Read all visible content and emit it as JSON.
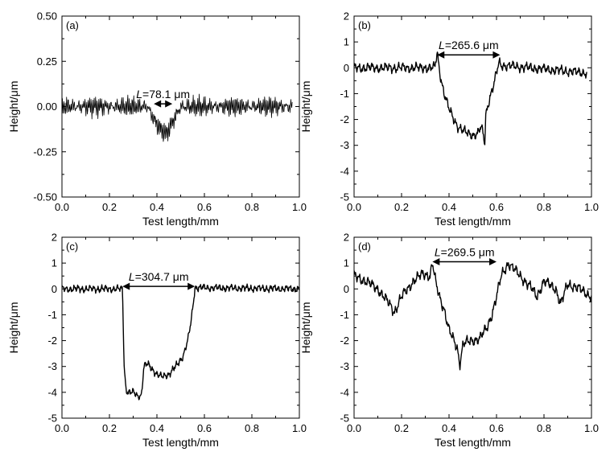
{
  "chart_data": [
    {
      "type": "line",
      "panel_label": "(a)",
      "xlabel": "Test length/mm",
      "ylabel": "Height/μm",
      "xlim": [
        0.0,
        1.0
      ],
      "ylim": [
        -0.5,
        0.5
      ],
      "xticks": [
        "0.0",
        "0.2",
        "0.4",
        "0.6",
        "0.8",
        "1.0"
      ],
      "yticks": [
        "-0.50",
        "-0.25",
        "0.00",
        "0.25",
        "0.50"
      ],
      "annotation": {
        "prefix": "L",
        "text": "=78.1 μm",
        "x_start": 0.387,
        "x_end": 0.465,
        "y": 0.015
      },
      "noise_amp": 0.055,
      "noise_freq": 1.0,
      "stroke_width": 0.8,
      "profile": {
        "x": [
          0.0,
          0.36,
          0.38,
          0.4,
          0.42,
          0.44,
          0.46,
          0.48,
          0.5,
          0.97
        ],
        "y": [
          0.0,
          0.0,
          -0.05,
          -0.1,
          -0.13,
          -0.15,
          -0.1,
          -0.05,
          0.0,
          0.0
        ]
      }
    },
    {
      "type": "line",
      "panel_label": "(b)",
      "xlabel": "Test length/mm",
      "ylabel": "Height/μm",
      "xlim": [
        0.0,
        1.0
      ],
      "ylim": [
        -5,
        2
      ],
      "xticks": [
        "0.0",
        "0.2",
        "0.4",
        "0.6",
        "0.8",
        "1.0"
      ],
      "yticks": [
        "-5",
        "-4",
        "-3",
        "-2",
        "-1",
        "0",
        "1",
        "2"
      ],
      "annotation": {
        "prefix": "L",
        "text": "=265.6 μm",
        "x_start": 0.35,
        "x_end": 0.615,
        "y": 0.5
      },
      "noise_amp": 0.2,
      "noise_freq": 0.35,
      "stroke_width": 1.4,
      "profile": {
        "x": [
          0.0,
          0.34,
          0.35,
          0.36,
          0.37,
          0.38,
          0.4,
          0.42,
          0.44,
          0.47,
          0.5,
          0.52,
          0.535,
          0.545,
          0.55,
          0.555,
          0.57,
          0.59,
          0.61,
          0.62,
          0.98
        ],
        "y": [
          0.0,
          0.0,
          0.6,
          -0.1,
          -0.6,
          -1.0,
          -1.6,
          -2.0,
          -2.3,
          -2.5,
          -2.6,
          -2.55,
          -2.3,
          -2.6,
          -3.0,
          -1.8,
          -1.2,
          -0.6,
          0.2,
          0.1,
          -0.2
        ]
      }
    },
    {
      "type": "line",
      "panel_label": "(c)",
      "xlabel": "Test length/mm",
      "ylabel": "Height/μm",
      "xlim": [
        0.0,
        1.0
      ],
      "ylim": [
        -5,
        2
      ],
      "xticks": [
        "0.0",
        "0.2",
        "0.4",
        "0.6",
        "0.8",
        "1.0"
      ],
      "yticks": [
        "-5",
        "-4",
        "-3",
        "-2",
        "-1",
        "0",
        "1",
        "2"
      ],
      "annotation": {
        "prefix": "L",
        "text": "=304.7 μm",
        "x_start": 0.255,
        "x_end": 0.56,
        "y": 0.1
      },
      "noise_amp": 0.15,
      "noise_freq": 0.4,
      "stroke_width": 1.4,
      "profile": {
        "x": [
          0.0,
          0.255,
          0.262,
          0.27,
          0.28,
          0.3,
          0.32,
          0.335,
          0.345,
          0.36,
          0.38,
          0.4,
          0.42,
          0.45,
          0.48,
          0.51,
          0.53,
          0.545,
          0.555,
          0.56,
          1.0
        ],
        "y": [
          0.0,
          0.0,
          -3.0,
          -3.9,
          -4.0,
          -4.0,
          -4.15,
          -4.1,
          -3.0,
          -2.9,
          -3.1,
          -3.3,
          -3.4,
          -3.3,
          -3.0,
          -2.6,
          -2.0,
          -1.2,
          -0.4,
          0.05,
          0.0
        ]
      }
    },
    {
      "type": "line",
      "panel_label": "(d)",
      "xlabel": "Test length/mm",
      "ylabel": "Height/μm",
      "xlim": [
        0.0,
        1.0
      ],
      "ylim": [
        -5,
        2
      ],
      "xticks": [
        "0.0",
        "0.2",
        "0.4",
        "0.6",
        "0.8",
        "1.0"
      ],
      "yticks": [
        "-5",
        "-4",
        "-3",
        "-2",
        "-1",
        "0",
        "1",
        "2"
      ],
      "annotation": {
        "prefix": "L",
        "text": "=269.5 μm",
        "x_start": 0.33,
        "x_end": 0.6,
        "y": 1.05
      },
      "noise_amp": 0.22,
      "noise_freq": 0.35,
      "stroke_width": 1.4,
      "profile": {
        "x": [
          0.0,
          0.05,
          0.1,
          0.15,
          0.17,
          0.2,
          0.25,
          0.29,
          0.32,
          0.33,
          0.345,
          0.36,
          0.38,
          0.4,
          0.42,
          0.435,
          0.445,
          0.46,
          0.5,
          0.53,
          0.56,
          0.58,
          0.6,
          0.62,
          0.65,
          0.7,
          0.75,
          0.77,
          0.8,
          0.85,
          0.87,
          0.9,
          0.95,
          1.0
        ],
        "y": [
          0.5,
          0.3,
          0.0,
          -0.6,
          -0.9,
          -0.3,
          0.3,
          0.6,
          0.5,
          1.0,
          0.2,
          -0.3,
          -0.8,
          -1.6,
          -2.0,
          -2.3,
          -2.9,
          -2.1,
          -2.0,
          -1.9,
          -1.5,
          -1.0,
          -0.3,
          0.5,
          1.0,
          0.5,
          0.0,
          -0.3,
          0.3,
          0.0,
          -0.6,
          0.2,
          0.0,
          -0.3
        ]
      }
    }
  ]
}
